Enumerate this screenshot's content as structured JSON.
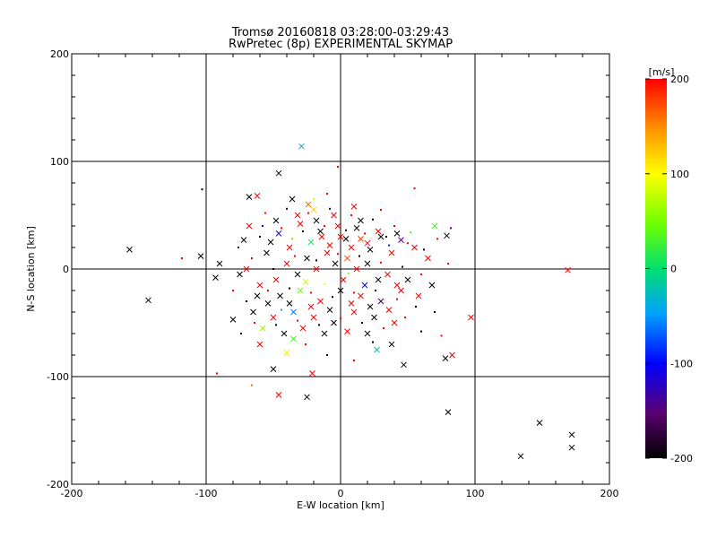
{
  "chart_data": {
    "type": "scatter",
    "title": "Tromsø 20160818 03:28:00-03:29:43",
    "subtitle": "RwPretec (8p) EXPERIMENTAL SKYMAP",
    "xlabel": "E-W location [km]",
    "ylabel": "N-S location [km]",
    "xlim": [
      -200,
      200
    ],
    "ylim": [
      -200,
      200
    ],
    "xticks": [
      "-200",
      "-100",
      "0",
      "100",
      "200"
    ],
    "yticks": [
      "-200",
      "-100",
      "0",
      "100",
      "200"
    ],
    "grid_lines": [
      -100,
      0,
      100
    ],
    "colorbar": {
      "label": "[m/s]",
      "range": [
        -200,
        200
      ],
      "ticks": [
        "200",
        "100",
        "0",
        "-100",
        "-200"
      ]
    },
    "markers": {
      "small": "dot",
      "large": "cross"
    },
    "points": [
      {
        "x": -29,
        "y": 114,
        "v": -40,
        "m": "x"
      },
      {
        "x": -46,
        "y": 89,
        "v": -200,
        "m": "x"
      },
      {
        "x": -2,
        "y": 95,
        "v": 200,
        "m": "d"
      },
      {
        "x": -103,
        "y": 74,
        "v": -200,
        "m": "d"
      },
      {
        "x": 55,
        "y": 75,
        "v": 200,
        "m": "d"
      },
      {
        "x": -157,
        "y": 18,
        "v": -200,
        "m": "x"
      },
      {
        "x": -104,
        "y": 12,
        "v": -200,
        "m": "x"
      },
      {
        "x": -118,
        "y": 10,
        "v": 200,
        "m": "d"
      },
      {
        "x": -143,
        "y": -29,
        "v": -200,
        "m": "x"
      },
      {
        "x": -90,
        "y": 5,
        "v": -200,
        "m": "x"
      },
      {
        "x": -93,
        "y": -8,
        "v": -200,
        "m": "x"
      },
      {
        "x": -92,
        "y": -97,
        "v": 200,
        "m": "d"
      },
      {
        "x": -66,
        "y": -108,
        "v": 160,
        "m": "d"
      },
      {
        "x": -46,
        "y": -117,
        "v": 200,
        "m": "x"
      },
      {
        "x": -25,
        "y": -119,
        "v": -200,
        "m": "x"
      },
      {
        "x": -50,
        "y": -93,
        "v": -200,
        "m": "x"
      },
      {
        "x": -21,
        "y": -97,
        "v": 200,
        "m": "x"
      },
      {
        "x": 47,
        "y": -89,
        "v": -200,
        "m": "x"
      },
      {
        "x": 80,
        "y": -133,
        "v": -200,
        "m": "x"
      },
      {
        "x": 78,
        "y": -83,
        "v": -200,
        "m": "x"
      },
      {
        "x": 83,
        "y": -80,
        "v": 200,
        "m": "x"
      },
      {
        "x": 97,
        "y": -45,
        "v": 200,
        "m": "x"
      },
      {
        "x": 75,
        "y": -62,
        "v": 200,
        "m": "d"
      },
      {
        "x": 38,
        "y": -70,
        "v": -200,
        "m": "x"
      },
      {
        "x": 27,
        "y": -75,
        "v": -20,
        "m": "x"
      },
      {
        "x": 169,
        "y": -1,
        "v": 200,
        "m": "x"
      },
      {
        "x": 134,
        "y": -174,
        "v": -200,
        "m": "x"
      },
      {
        "x": 148,
        "y": -143,
        "v": -200,
        "m": "x"
      },
      {
        "x": 172,
        "y": -154,
        "v": -200,
        "m": "x"
      },
      {
        "x": 172,
        "y": -166,
        "v": -200,
        "m": "x"
      },
      {
        "x": 79,
        "y": 31,
        "v": -200,
        "m": "x"
      },
      {
        "x": 70,
        "y": 40,
        "v": 30,
        "m": "x"
      },
      {
        "x": 82,
        "y": 38,
        "v": -150,
        "m": "d"
      },
      {
        "x": 80,
        "y": 5,
        "v": 200,
        "m": "d"
      },
      {
        "x": -62,
        "y": 68,
        "v": 200,
        "m": "x"
      },
      {
        "x": -68,
        "y": 67,
        "v": -200,
        "m": "x"
      },
      {
        "x": -36,
        "y": 65,
        "v": -200,
        "m": "x"
      },
      {
        "x": -24,
        "y": 60,
        "v": 160,
        "m": "x"
      },
      {
        "x": -20,
        "y": 55,
        "v": 120,
        "m": "x"
      },
      {
        "x": -5,
        "y": 50,
        "v": 200,
        "m": "x"
      },
      {
        "x": 10,
        "y": 58,
        "v": 200,
        "m": "x"
      },
      {
        "x": 15,
        "y": 45,
        "v": -200,
        "m": "x"
      },
      {
        "x": -40,
        "y": -78,
        "v": 110,
        "m": "x"
      },
      {
        "x": -35,
        "y": -65,
        "v": 30,
        "m": "x"
      },
      {
        "x": -60,
        "y": -70,
        "v": 200,
        "m": "x"
      },
      {
        "x": -80,
        "y": -47,
        "v": -200,
        "m": "x"
      },
      {
        "x": 60,
        "y": -58,
        "v": -200,
        "m": "d"
      },
      {
        "x": 10,
        "y": -85,
        "v": 200,
        "m": "d"
      },
      {
        "x": -10,
        "y": -80,
        "v": -200,
        "m": "d"
      },
      {
        "x": -72,
        "y": 27,
        "v": -200,
        "m": "x"
      },
      {
        "x": -68,
        "y": 40,
        "v": 200,
        "m": "x"
      },
      {
        "x": -46,
        "y": 33,
        "v": -120,
        "m": "x"
      },
      {
        "x": -30,
        "y": 42,
        "v": 200,
        "m": "x"
      },
      {
        "x": -15,
        "y": 35,
        "v": -200,
        "m": "x"
      },
      {
        "x": 0,
        "y": 30,
        "v": 200,
        "m": "x"
      },
      {
        "x": 15,
        "y": 28,
        "v": 180,
        "m": "x"
      },
      {
        "x": 30,
        "y": 30,
        "v": -200,
        "m": "x"
      },
      {
        "x": 45,
        "y": 27,
        "v": -150,
        "m": "x"
      },
      {
        "x": 55,
        "y": 20,
        "v": 200,
        "m": "x"
      },
      {
        "x": 65,
        "y": 10,
        "v": 200,
        "m": "x"
      },
      {
        "x": -55,
        "y": 15,
        "v": -200,
        "m": "x"
      },
      {
        "x": -40,
        "y": 5,
        "v": 200,
        "m": "x"
      },
      {
        "x": -25,
        "y": 10,
        "v": -200,
        "m": "x"
      },
      {
        "x": -10,
        "y": 15,
        "v": 200,
        "m": "x"
      },
      {
        "x": 5,
        "y": 10,
        "v": 170,
        "m": "x"
      },
      {
        "x": 20,
        "y": 5,
        "v": -200,
        "m": "x"
      },
      {
        "x": 35,
        "y": -5,
        "v": 200,
        "m": "x"
      },
      {
        "x": 50,
        "y": -10,
        "v": -200,
        "m": "x"
      },
      {
        "x": -60,
        "y": -15,
        "v": 200,
        "m": "x"
      },
      {
        "x": -45,
        "y": -25,
        "v": -200,
        "m": "x"
      },
      {
        "x": -30,
        "y": -20,
        "v": 50,
        "m": "x"
      },
      {
        "x": -15,
        "y": -30,
        "v": 200,
        "m": "x"
      },
      {
        "x": 0,
        "y": -20,
        "v": -200,
        "m": "x"
      },
      {
        "x": 15,
        "y": -25,
        "v": 200,
        "m": "x"
      },
      {
        "x": 30,
        "y": -30,
        "v": -170,
        "m": "x"
      },
      {
        "x": 45,
        "y": -20,
        "v": 200,
        "m": "x"
      },
      {
        "x": -65,
        "y": -40,
        "v": -200,
        "m": "x"
      },
      {
        "x": -50,
        "y": -45,
        "v": 200,
        "m": "x"
      },
      {
        "x": -35,
        "y": -40,
        "v": -60,
        "m": "x"
      },
      {
        "x": -20,
        "y": -45,
        "v": 200,
        "m": "x"
      },
      {
        "x": -5,
        "y": -50,
        "v": -200,
        "m": "x"
      },
      {
        "x": 10,
        "y": -40,
        "v": 200,
        "m": "x"
      },
      {
        "x": 25,
        "y": -45,
        "v": -200,
        "m": "x"
      },
      {
        "x": 40,
        "y": -50,
        "v": 200,
        "m": "x"
      },
      {
        "x": -58,
        "y": -55,
        "v": 60,
        "m": "x"
      },
      {
        "x": -42,
        "y": -60,
        "v": -200,
        "m": "x"
      },
      {
        "x": -28,
        "y": -55,
        "v": 200,
        "m": "x"
      },
      {
        "x": -12,
        "y": -60,
        "v": -200,
        "m": "x"
      },
      {
        "x": 5,
        "y": -58,
        "v": 200,
        "m": "x"
      },
      {
        "x": 20,
        "y": -60,
        "v": -200,
        "m": "x"
      },
      {
        "x": -75,
        "y": -5,
        "v": -200,
        "m": "x"
      },
      {
        "x": -70,
        "y": 0,
        "v": 200,
        "m": "x"
      },
      {
        "x": -52,
        "y": 25,
        "v": -200,
        "m": "x"
      },
      {
        "x": -38,
        "y": 20,
        "v": 200,
        "m": "x"
      },
      {
        "x": -22,
        "y": 25,
        "v": 10,
        "m": "x"
      },
      {
        "x": -8,
        "y": 22,
        "v": 200,
        "m": "x"
      },
      {
        "x": 8,
        "y": 20,
        "v": 200,
        "m": "x"
      },
      {
        "x": 22,
        "y": 18,
        "v": -200,
        "m": "x"
      },
      {
        "x": 38,
        "y": 15,
        "v": 200,
        "m": "x"
      },
      {
        "x": -48,
        "y": 45,
        "v": -200,
        "m": "x"
      },
      {
        "x": -32,
        "y": 50,
        "v": 200,
        "m": "x"
      },
      {
        "x": -18,
        "y": 45,
        "v": -200,
        "m": "x"
      },
      {
        "x": -2,
        "y": 40,
        "v": 200,
        "m": "x"
      },
      {
        "x": 12,
        "y": 38,
        "v": -200,
        "m": "x"
      },
      {
        "x": 28,
        "y": 35,
        "v": 200,
        "m": "x"
      },
      {
        "x": 42,
        "y": 33,
        "v": -200,
        "m": "x"
      },
      {
        "x": -62,
        "y": -25,
        "v": -200,
        "m": "x"
      },
      {
        "x": -48,
        "y": -10,
        "v": 200,
        "m": "x"
      },
      {
        "x": -32,
        "y": -5,
        "v": -200,
        "m": "x"
      },
      {
        "x": -18,
        "y": 0,
        "v": 200,
        "m": "x"
      },
      {
        "x": -4,
        "y": 5,
        "v": -200,
        "m": "x"
      },
      {
        "x": 12,
        "y": 0,
        "v": 200,
        "m": "x"
      },
      {
        "x": 28,
        "y": -10,
        "v": -200,
        "m": "x"
      },
      {
        "x": 42,
        "y": -15,
        "v": 200,
        "m": "x"
      },
      {
        "x": 58,
        "y": -25,
        "v": 200,
        "m": "x"
      },
      {
        "x": 68,
        "y": -15,
        "v": -200,
        "m": "x"
      },
      {
        "x": -38,
        "y": -32,
        "v": -200,
        "m": "x"
      },
      {
        "x": -22,
        "y": -35,
        "v": 200,
        "m": "x"
      },
      {
        "x": -8,
        "y": -38,
        "v": -200,
        "m": "x"
      },
      {
        "x": 8,
        "y": -32,
        "v": 200,
        "m": "x"
      },
      {
        "x": 22,
        "y": -35,
        "v": -200,
        "m": "x"
      },
      {
        "x": 36,
        "y": -38,
        "v": 200,
        "m": "x"
      },
      {
        "x": -54,
        "y": -32,
        "v": -200,
        "m": "x"
      },
      {
        "x": -26,
        "y": -12,
        "v": 80,
        "m": "x"
      },
      {
        "x": 2,
        "y": -10,
        "v": 200,
        "m": "x"
      },
      {
        "x": 18,
        "y": -15,
        "v": -100,
        "m": "x"
      },
      {
        "x": -14,
        "y": 30,
        "v": 200,
        "m": "x"
      },
      {
        "x": 4,
        "y": 28,
        "v": -200,
        "m": "x"
      },
      {
        "x": 20,
        "y": 24,
        "v": 200,
        "m": "x"
      },
      {
        "x": -60,
        "y": 30,
        "v": -200,
        "m": "d"
      },
      {
        "x": -44,
        "y": 38,
        "v": 200,
        "m": "d"
      },
      {
        "x": -28,
        "y": 35,
        "v": -200,
        "m": "d"
      },
      {
        "x": -12,
        "y": 40,
        "v": 200,
        "m": "d"
      },
      {
        "x": 4,
        "y": 36,
        "v": -200,
        "m": "d"
      },
      {
        "x": 18,
        "y": 33,
        "v": 200,
        "m": "d"
      },
      {
        "x": 34,
        "y": 30,
        "v": -200,
        "m": "d"
      },
      {
        "x": 50,
        "y": 24,
        "v": 200,
        "m": "d"
      },
      {
        "x": 62,
        "y": 18,
        "v": -200,
        "m": "d"
      },
      {
        "x": -66,
        "y": 10,
        "v": 200,
        "m": "d"
      },
      {
        "x": -50,
        "y": 0,
        "v": -200,
        "m": "d"
      },
      {
        "x": -34,
        "y": 12,
        "v": 200,
        "m": "d"
      },
      {
        "x": -18,
        "y": 8,
        "v": -200,
        "m": "d"
      },
      {
        "x": -2,
        "y": 14,
        "v": 200,
        "m": "d"
      },
      {
        "x": 14,
        "y": 12,
        "v": -200,
        "m": "d"
      },
      {
        "x": 30,
        "y": 6,
        "v": 200,
        "m": "d"
      },
      {
        "x": 46,
        "y": 2,
        "v": -200,
        "m": "d"
      },
      {
        "x": 60,
        "y": -5,
        "v": 200,
        "m": "d"
      },
      {
        "x": -70,
        "y": -30,
        "v": -200,
        "m": "d"
      },
      {
        "x": -54,
        "y": -20,
        "v": 200,
        "m": "d"
      },
      {
        "x": -38,
        "y": -18,
        "v": -200,
        "m": "d"
      },
      {
        "x": -22,
        "y": -22,
        "v": 200,
        "m": "d"
      },
      {
        "x": -6,
        "y": -26,
        "v": -200,
        "m": "d"
      },
      {
        "x": 10,
        "y": -22,
        "v": 200,
        "m": "d"
      },
      {
        "x": 26,
        "y": -20,
        "v": -200,
        "m": "d"
      },
      {
        "x": 42,
        "y": -28,
        "v": 200,
        "m": "d"
      },
      {
        "x": 56,
        "y": -35,
        "v": -200,
        "m": "d"
      },
      {
        "x": -64,
        "y": -50,
        "v": 200,
        "m": "d"
      },
      {
        "x": -48,
        "y": -52,
        "v": -200,
        "m": "d"
      },
      {
        "x": -32,
        "y": -48,
        "v": 200,
        "m": "d"
      },
      {
        "x": -16,
        "y": -52,
        "v": -200,
        "m": "d"
      },
      {
        "x": 0,
        "y": -46,
        "v": 200,
        "m": "d"
      },
      {
        "x": 16,
        "y": -50,
        "v": -200,
        "m": "d"
      },
      {
        "x": 32,
        "y": -55,
        "v": 200,
        "m": "d"
      },
      {
        "x": -56,
        "y": 52,
        "v": 200,
        "m": "d"
      },
      {
        "x": -40,
        "y": 56,
        "v": -200,
        "m": "d"
      },
      {
        "x": -24,
        "y": 52,
        "v": 200,
        "m": "d"
      },
      {
        "x": -8,
        "y": 56,
        "v": -200,
        "m": "d"
      },
      {
        "x": 8,
        "y": 50,
        "v": 200,
        "m": "d"
      },
      {
        "x": 24,
        "y": 46,
        "v": -200,
        "m": "d"
      },
      {
        "x": 40,
        "y": 40,
        "v": 200,
        "m": "d"
      },
      {
        "x": -20,
        "y": 65,
        "v": 90,
        "m": "d"
      },
      {
        "x": -10,
        "y": 70,
        "v": 200,
        "m": "d"
      },
      {
        "x": 30,
        "y": 55,
        "v": 200,
        "m": "d"
      },
      {
        "x": -76,
        "y": 20,
        "v": -200,
        "m": "d"
      },
      {
        "x": -80,
        "y": -20,
        "v": 200,
        "m": "d"
      },
      {
        "x": -74,
        "y": -60,
        "v": -200,
        "m": "d"
      },
      {
        "x": -26,
        "y": -70,
        "v": 200,
        "m": "d"
      },
      {
        "x": 24,
        "y": -68,
        "v": -200,
        "m": "d"
      },
      {
        "x": 48,
        "y": -45,
        "v": 200,
        "m": "d"
      },
      {
        "x": 70,
        "y": -40,
        "v": -200,
        "m": "d"
      },
      {
        "x": 72,
        "y": 28,
        "v": 200,
        "m": "d"
      },
      {
        "x": -36,
        "y": 28,
        "v": 140,
        "m": "d"
      },
      {
        "x": -44,
        "y": -38,
        "v": -40,
        "m": "d"
      },
      {
        "x": 6,
        "y": -4,
        "v": 60,
        "m": "d"
      },
      {
        "x": 36,
        "y": 22,
        "v": -90,
        "m": "d"
      },
      {
        "x": -12,
        "y": -14,
        "v": 100,
        "m": "d"
      },
      {
        "x": 52,
        "y": 34,
        "v": 40,
        "m": "d"
      },
      {
        "x": -58,
        "y": 40,
        "v": -100,
        "m": "d"
      }
    ]
  }
}
